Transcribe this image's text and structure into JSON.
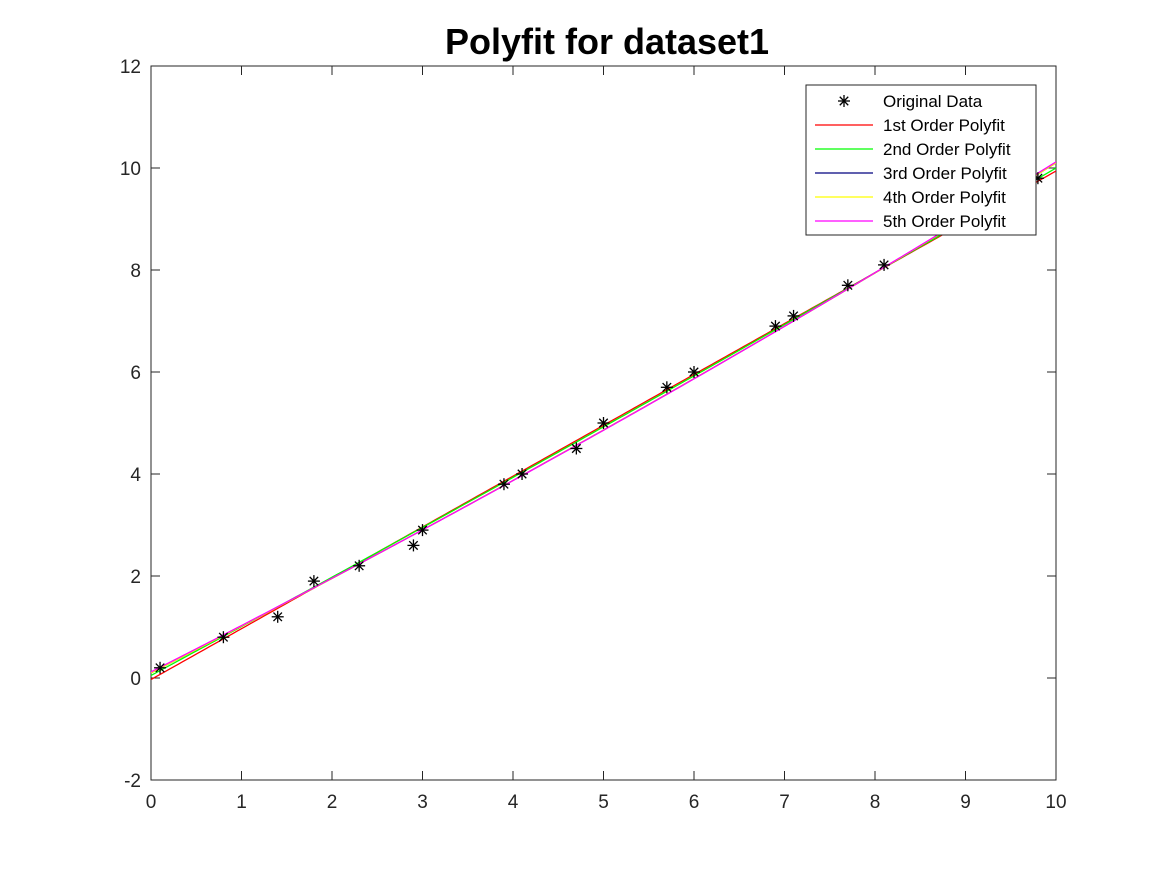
{
  "chart_data": {
    "type": "line",
    "title": "Polyfit for dataset1",
    "xlabel": "",
    "ylabel": "",
    "xlim": [
      0,
      10
    ],
    "ylim": [
      -2,
      12
    ],
    "xticks": [
      0,
      1,
      2,
      3,
      4,
      5,
      6,
      7,
      8,
      9,
      10
    ],
    "yticks": [
      -2,
      0,
      2,
      4,
      6,
      8,
      10,
      12
    ],
    "grid": false,
    "box": true,
    "legend_position": "top-right",
    "scatter": {
      "name": "Original Data",
      "marker": "asterisk",
      "color": "#000000",
      "x": [
        0.1,
        0.8,
        1.4,
        1.8,
        2.3,
        2.9,
        3.0,
        3.9,
        4.1,
        4.7,
        5.0,
        5.7,
        6.0,
        6.9,
        7.1,
        7.7,
        8.1,
        9.8
      ],
      "y": [
        0.2,
        0.8,
        1.2,
        1.9,
        2.2,
        2.6,
        2.9,
        3.8,
        4.0,
        4.5,
        5.0,
        5.7,
        6.0,
        6.9,
        7.1,
        7.7,
        8.1,
        9.8
      ]
    },
    "series": [
      {
        "name": "1st Order Polyfit",
        "color": "#ff0000",
        "coeffs": [
          -0.03,
          0.997
        ]
      },
      {
        "name": "2nd Order Polyfit",
        "color": "#00ff00",
        "coeffs": [
          0.05,
          0.955,
          0.004
        ]
      },
      {
        "name": "3rd Order Polyfit",
        "color": "#00007f",
        "coeffs": [
          0.1,
          0.91,
          0.008,
          0.0001
        ]
      },
      {
        "name": "4th Order Polyfit",
        "color": "#ffff00",
        "coeffs": [
          0.1,
          0.91,
          0.008,
          0.0001,
          0
        ]
      },
      {
        "name": "5th Order Polyfit",
        "color": "#ff00ff",
        "coeffs": [
          0.12,
          0.9,
          0.009,
          0.0001,
          0,
          0
        ]
      }
    ]
  }
}
